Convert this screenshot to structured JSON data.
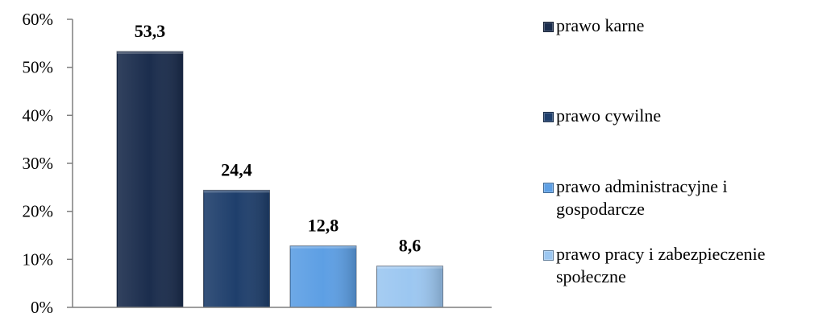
{
  "chart_data": {
    "type": "bar",
    "categories": [
      "prawo karne",
      "prawo cywilne",
      "prawo administracyjne i gospodarcze",
      "prawo pracy i zabezpieczenie społeczne"
    ],
    "values": [
      53.3,
      24.4,
      12.8,
      8.6
    ],
    "data_labels": [
      "53,3",
      "24,4",
      "12,8",
      "8,6"
    ],
    "colors": [
      "#1b2d4d",
      "#1f3f6c",
      "#5d9fe4",
      "#9cc7f1"
    ],
    "ylim": [
      0,
      60
    ],
    "yticks": [
      0,
      10,
      20,
      30,
      40,
      50,
      60
    ],
    "ytick_labels": [
      "0%",
      "10%",
      "20%",
      "30%",
      "40%",
      "50%",
      "60%"
    ],
    "grid": false,
    "legend_position": "right"
  },
  "legend": {
    "items": [
      {
        "lines": [
          "prawo karne"
        ]
      },
      {
        "lines": [
          "prawo cywilne"
        ]
      },
      {
        "lines": [
          "prawo administracyjne i",
          "gospodarcze"
        ]
      },
      {
        "lines": [
          "prawo pracy i zabezpieczenie",
          "społeczne"
        ]
      }
    ]
  }
}
